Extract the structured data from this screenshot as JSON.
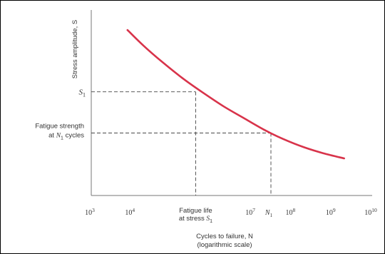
{
  "chart_data": {
    "type": "line",
    "title": "",
    "xlabel": "Cycles to failure, N",
    "xlabel_sub": "(logarithmic scale)",
    "ylabel": "Stress amplitude, S",
    "x_scale": "log",
    "xlim": [
      1000,
      10000000000
    ],
    "x_ticks": [
      {
        "value": 1000,
        "base": "10",
        "exp": "3"
      },
      {
        "value": 10000,
        "base": "10",
        "exp": "4"
      },
      {
        "value": 10000000,
        "base": "10",
        "exp": "7"
      },
      {
        "value": 100000000,
        "base": "10",
        "exp": "8"
      },
      {
        "value": 1000000000,
        "base": "10",
        "exp": "9"
      },
      {
        "value": 10000000000,
        "base": "10",
        "exp": "10"
      }
    ],
    "ylim": [
      0,
      1
    ],
    "y_ticks_shown": false,
    "grid": false,
    "line_color": "#d8334a",
    "series": [
      {
        "x": [
          8000,
          20000,
          60000,
          200000,
          600000,
          2000000,
          6000000,
          20000000,
          60000000,
          200000000,
          600000000,
          2000000000
        ],
        "y": [
          0.892,
          0.808,
          0.718,
          0.628,
          0.555,
          0.48,
          0.42,
          0.355,
          0.305,
          0.26,
          0.228,
          0.2
        ]
      }
    ],
    "annotations": {
      "s1": {
        "main": "S",
        "sub": "1",
        "y": 0.559
      },
      "n1": {
        "main": "N",
        "sub": "1",
        "x": 30000000
      },
      "fatigue_strength": {
        "line1": "Fatigue strength",
        "line2_pre": "at ",
        "line2_main": "N",
        "line2_sub": "1",
        "line2_post": " cycles",
        "y": 0.337
      },
      "fatigue_life": {
        "line1": "Fatigue life",
        "line2_pre": "at stress ",
        "line2_main": "S",
        "line2_sub": "1",
        "x": 400000
      }
    }
  }
}
